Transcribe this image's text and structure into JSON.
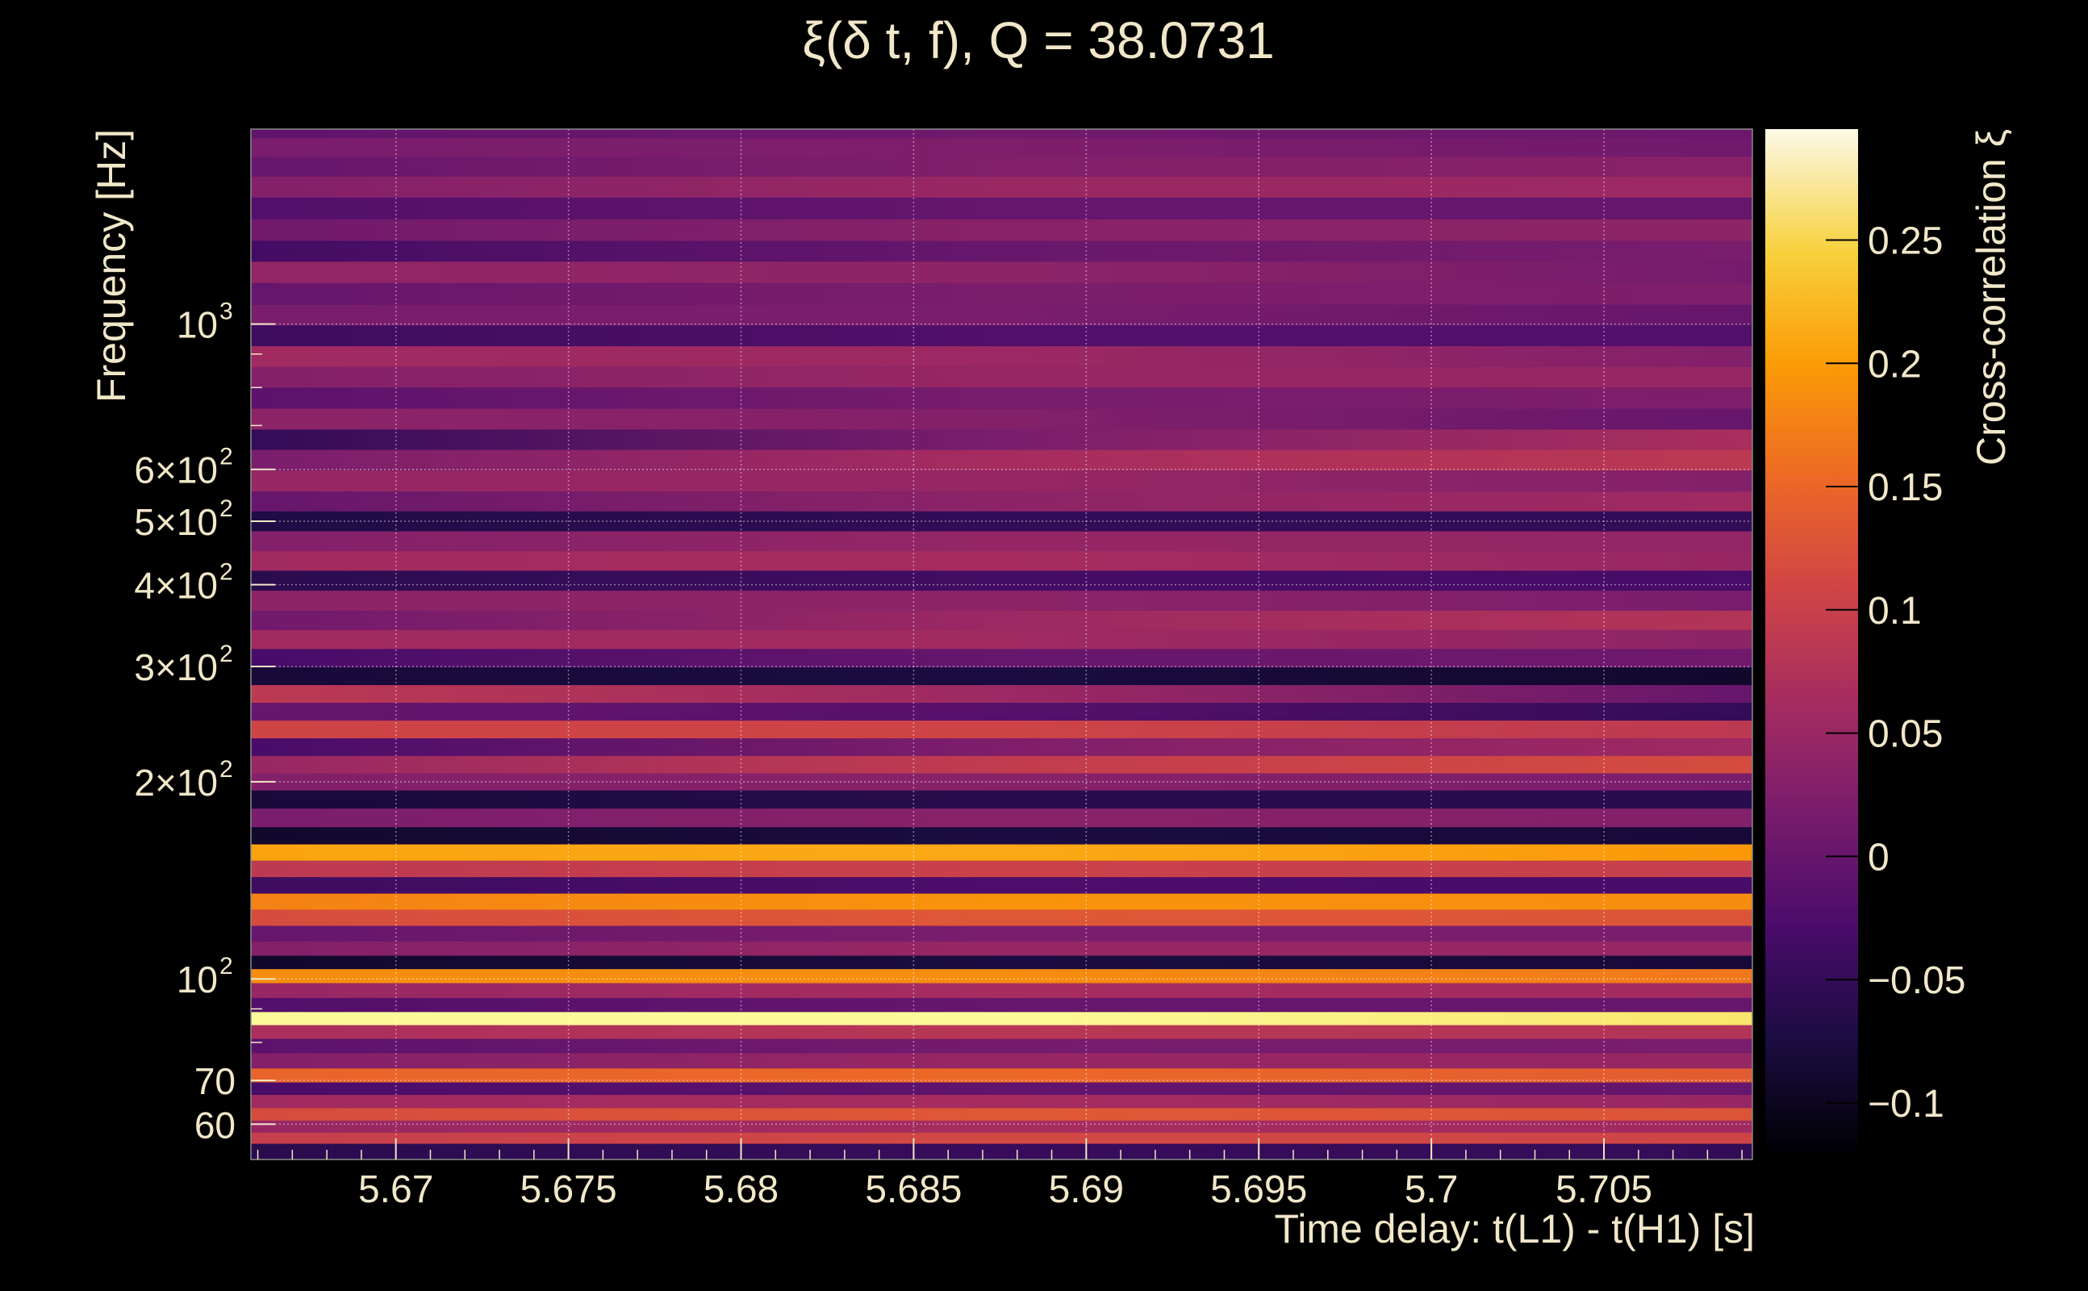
{
  "chart_data": {
    "type": "heatmap",
    "title": "ξ(δ t, f), Q = 38.0731",
    "xlabel": "Time delay: t(L1) - t(H1) [s]",
    "ylabel": "Frequency [Hz]",
    "colorbar_label": "Cross-correlation ξ",
    "xlim": [
      5.6658,
      5.7093
    ],
    "ylim": [
      53,
      1985
    ],
    "yscale": "log",
    "x_ticks": [
      {
        "value": 5.67,
        "label": "5.67"
      },
      {
        "value": 5.675,
        "label": "5.675"
      },
      {
        "value": 5.68,
        "label": "5.68"
      },
      {
        "value": 5.685,
        "label": "5.685"
      },
      {
        "value": 5.69,
        "label": "5.69"
      },
      {
        "value": 5.695,
        "label": "5.695"
      },
      {
        "value": 5.7,
        "label": "5.7"
      },
      {
        "value": 5.705,
        "label": "5.705"
      }
    ],
    "y_ticks": [
      {
        "value": 60,
        "label": "60"
      },
      {
        "value": 70,
        "label": "70"
      },
      {
        "value": 100,
        "label": "10",
        "exp": "2"
      },
      {
        "value": 200,
        "label": "2×10",
        "exp": "2"
      },
      {
        "value": 300,
        "label": "3×10",
        "exp": "2"
      },
      {
        "value": 400,
        "label": "4×10",
        "exp": "2"
      },
      {
        "value": 500,
        "label": "5×10",
        "exp": "2"
      },
      {
        "value": 600,
        "label": "6×10",
        "exp": "2"
      },
      {
        "value": 1000,
        "label": "10",
        "exp": "3"
      }
    ],
    "colorbar_range": [
      -0.12,
      0.295
    ],
    "colorbar_ticks": [
      {
        "value": -0.1,
        "label": "−0.1"
      },
      {
        "value": -0.05,
        "label": "−0.05"
      },
      {
        "value": 0,
        "label": "0"
      },
      {
        "value": 0.05,
        "label": "0.05"
      },
      {
        "value": 0.1,
        "label": "0.1"
      },
      {
        "value": 0.15,
        "label": "0.15"
      },
      {
        "value": 0.2,
        "label": "0.2"
      },
      {
        "value": 0.25,
        "label": "0.25"
      }
    ],
    "colormap": [
      "#000004",
      "#1b0c41",
      "#4a0c6b",
      "#781c6d",
      "#a52c60",
      "#cf4446",
      "#ed6925",
      "#fb9b06",
      "#f7d13d",
      "#fcffa4"
    ],
    "bands": [
      {
        "f": 1985,
        "ca": -0.005,
        "cb": 0.005
      },
      {
        "f": 1860,
        "ca": 0.02,
        "cb": 0.01
      },
      {
        "f": 1740,
        "ca": 0.0,
        "cb": 0.035
      },
      {
        "f": 1620,
        "ca": 0.03,
        "cb": 0.055
      },
      {
        "f": 1500,
        "ca": -0.02,
        "cb": 0.0
      },
      {
        "f": 1390,
        "ca": 0.01,
        "cb": 0.04
      },
      {
        "f": 1290,
        "ca": -0.035,
        "cb": 0.02
      },
      {
        "f": 1200,
        "ca": 0.045,
        "cb": 0.015
      },
      {
        "f": 1110,
        "ca": 0.0,
        "cb": 0.025
      },
      {
        "f": 1030,
        "ca": 0.02,
        "cb": 0.0
      },
      {
        "f": 960,
        "ca": -0.04,
        "cb": -0.02
      },
      {
        "f": 890,
        "ca": 0.06,
        "cb": 0.03
      },
      {
        "f": 830,
        "ca": 0.03,
        "cb": 0.05
      },
      {
        "f": 770,
        "ca": -0.01,
        "cb": 0.025
      },
      {
        "f": 715,
        "ca": 0.04,
        "cb": 0.0
      },
      {
        "f": 665,
        "ca": -0.05,
        "cb": 0.07
      },
      {
        "f": 620,
        "ca": 0.02,
        "cb": 0.09
      },
      {
        "f": 575,
        "ca": 0.05,
        "cb": 0.03
      },
      {
        "f": 535,
        "ca": 0.0,
        "cb": 0.06
      },
      {
        "f": 500,
        "ca": -0.07,
        "cb": -0.05
      },
      {
        "f": 465,
        "ca": 0.03,
        "cb": 0.045
      },
      {
        "f": 435,
        "ca": 0.06,
        "cb": 0.05
      },
      {
        "f": 405,
        "ca": -0.06,
        "cb": -0.03
      },
      {
        "f": 378,
        "ca": 0.04,
        "cb": 0.02
      },
      {
        "f": 352,
        "ca": 0.01,
        "cb": 0.08
      },
      {
        "f": 330,
        "ca": 0.06,
        "cb": 0.04
      },
      {
        "f": 308,
        "ca": -0.03,
        "cb": 0.01
      },
      {
        "f": 290,
        "ca": -0.08,
        "cb": -0.09
      },
      {
        "f": 272,
        "ca": 0.09,
        "cb": 0.0
      },
      {
        "f": 256,
        "ca": 0.0,
        "cb": -0.05
      },
      {
        "f": 240,
        "ca": 0.11,
        "cb": 0.09
      },
      {
        "f": 226,
        "ca": -0.03,
        "cb": 0.06
      },
      {
        "f": 212,
        "ca": 0.05,
        "cb": 0.12
      },
      {
        "f": 200,
        "ca": 0.03,
        "cb": 0.02
      },
      {
        "f": 188,
        "ca": -0.08,
        "cb": -0.06
      },
      {
        "f": 176,
        "ca": 0.02,
        "cb": 0.03
      },
      {
        "f": 165,
        "ca": -0.09,
        "cb": -0.08
      },
      {
        "f": 156,
        "ca": 0.21,
        "cb": 0.2
      },
      {
        "f": 147,
        "ca": 0.09,
        "cb": 0.1
      },
      {
        "f": 139,
        "ca": -0.04,
        "cb": -0.03
      },
      {
        "f": 131,
        "ca": 0.18,
        "cb": 0.19
      },
      {
        "f": 124,
        "ca": 0.12,
        "cb": 0.13
      },
      {
        "f": 117,
        "ca": 0.0,
        "cb": 0.02
      },
      {
        "f": 111,
        "ca": 0.03,
        "cb": 0.05
      },
      {
        "f": 106,
        "ca": -0.09,
        "cb": -0.08
      },
      {
        "f": 101,
        "ca": 0.19,
        "cb": 0.17
      },
      {
        "f": 96,
        "ca": 0.05,
        "cb": 0.06
      },
      {
        "f": 91,
        "ca": -0.02,
        "cb": 0.0
      },
      {
        "f": 87,
        "ca": 0.29,
        "cb": 0.27
      },
      {
        "f": 83,
        "ca": 0.07,
        "cb": 0.08
      },
      {
        "f": 79,
        "ca": -0.01,
        "cb": 0.02
      },
      {
        "f": 75,
        "ca": 0.03,
        "cb": 0.05
      },
      {
        "f": 71,
        "ca": 0.15,
        "cb": 0.14
      },
      {
        "f": 68,
        "ca": -0.03,
        "cb": 0.0
      },
      {
        "f": 65,
        "ca": 0.06,
        "cb": 0.05
      },
      {
        "f": 62,
        "ca": 0.12,
        "cb": 0.13
      },
      {
        "f": 59.5,
        "ca": 0.05,
        "cb": 0.06
      },
      {
        "f": 57,
        "ca": 0.1,
        "cb": 0.11
      },
      {
        "f": 55,
        "ca": -0.06,
        "cb": -0.05
      }
    ]
  }
}
